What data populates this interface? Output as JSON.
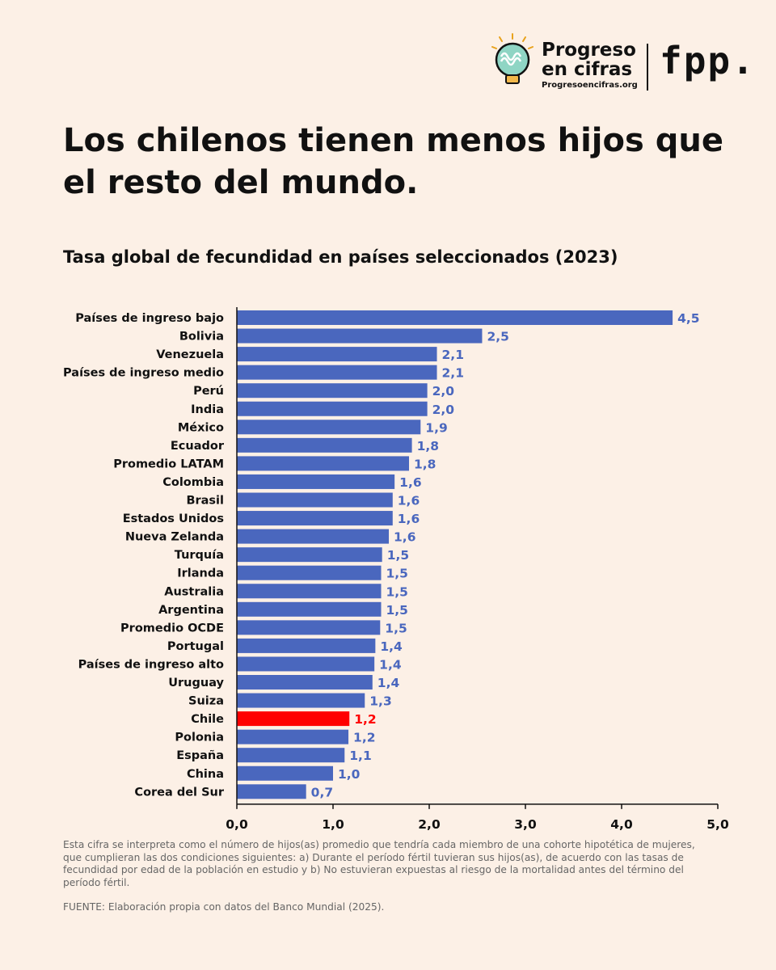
{
  "brand": {
    "name_line1": "Progreso",
    "name_line2": "en cifras",
    "url": "Progresoencifras.org",
    "partner": "fpp.",
    "icon": "lightbulb-icon"
  },
  "title": "Los chilenos tienen menos hijos que el resto del mundo.",
  "subtitle": "Tasa global de fecundidad en países seleccionados (2023)",
  "chart_data": {
    "type": "bar",
    "orientation": "horizontal",
    "categories": [
      "Países de ingreso bajo",
      "Bolivia",
      "Venezuela",
      "Países de ingreso medio",
      "Perú",
      "India",
      "México",
      "Ecuador",
      "Promedio LATAM",
      "Colombia",
      "Brasil",
      "Estados Unidos",
      "Nueva Zelanda",
      "Turquía",
      "Irlanda",
      "Australia",
      "Argentina",
      "Promedio OCDE",
      "Portugal",
      "Países de ingreso alto",
      "Uruguay",
      "Suiza",
      "Chile",
      "Polonia",
      "España",
      "China",
      "Corea del Sur"
    ],
    "values": [
      4.53,
      2.55,
      2.08,
      2.08,
      1.98,
      1.98,
      1.91,
      1.82,
      1.79,
      1.64,
      1.62,
      1.62,
      1.58,
      1.51,
      1.5,
      1.5,
      1.5,
      1.49,
      1.44,
      1.43,
      1.41,
      1.33,
      1.17,
      1.16,
      1.12,
      1.0,
      0.72
    ],
    "value_labels": [
      "4,5",
      "2,5",
      "2,1",
      "2,1",
      "2,0",
      "2,0",
      "1,9",
      "1,8",
      "1,8",
      "1,6",
      "1,6",
      "1,6",
      "1,6",
      "1,5",
      "1,5",
      "1,5",
      "1,5",
      "1,5",
      "1,4",
      "1,4",
      "1,4",
      "1,3",
      "1,2",
      "1,2",
      "1,1",
      "1,0",
      "0,7"
    ],
    "highlight": "Chile",
    "xlim": [
      0,
      5
    ],
    "xticks": [
      0,
      1,
      2,
      3,
      4,
      5
    ],
    "xtick_labels": [
      "0,0",
      "1,0",
      "2,0",
      "3,0",
      "4,0",
      "5,0"
    ],
    "grid": false,
    "colors": {
      "bar": "#4A67BE",
      "highlight": "#FF0000"
    }
  },
  "note": "Esta cifra se interpreta como el número de hijos(as) promedio que tendría cada miembro de una cohorte hipotética de mujeres, que cumplieran las dos condiciones siguientes: a) Durante el período fértil tuvieran sus hijos(as), de acuerdo con las tasas de fecundidad por edad de la población en estudio y b) No estuvieran expuestas al riesgo de la mortalidad antes del término del período fértil.",
  "source": "FUENTE: Elaboración propia con datos del Banco Mundial (2025)."
}
